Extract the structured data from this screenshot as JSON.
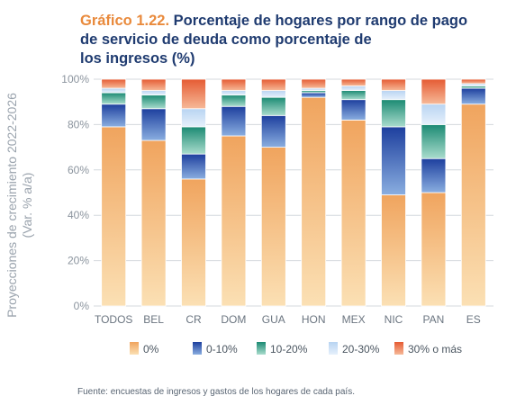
{
  "title_number": "Gráfico 1.22.",
  "title_lines": [
    "Porcentaje de hogares por rango de pago",
    "de servicio de deuda como porcentaje de",
    "los ingresos (%)"
  ],
  "ylabel_lines": [
    "Proyecciones de crecimiento 2022-2026",
    "(Var. % a/a)"
  ],
  "source": "Fuente: encuestas de ingresos y gastos de los hogares de cada país.",
  "chart_data": {
    "type": "bar",
    "stacked": true,
    "categories": [
      "TODOS",
      "BEL",
      "CR",
      "DOM",
      "GUA",
      "HON",
      "MEX",
      "NIC",
      "PAN",
      "ES"
    ],
    "yticks": [
      "0%",
      "20%",
      "40%",
      "60%",
      "80%",
      "100%"
    ],
    "ylim": [
      0,
      100
    ],
    "grid": true,
    "legend_position": "bottom",
    "series": [
      {
        "name": "0%",
        "values": [
          79,
          73,
          56,
          75,
          70,
          92,
          82,
          49,
          50,
          89
        ],
        "color_top": "#f0a45e",
        "color_bottom": "#fbe0b4",
        "legend_color": "#f2a65e"
      },
      {
        "name": "0-10%",
        "values": [
          10,
          14,
          11,
          13,
          14,
          2,
          9,
          30,
          15,
          7
        ],
        "color_top": "#1d3f9e",
        "color_bottom": "#8aaee0",
        "legend_color": "#2a4fa8"
      },
      {
        "name": "10-20%",
        "values": [
          5,
          6,
          12,
          5,
          8,
          1,
          4,
          12,
          15,
          1
        ],
        "color_top": "#1b8a73",
        "color_bottom": "#a9dccd",
        "legend_color": "#2e927a"
      },
      {
        "name": "20-30%",
        "values": [
          2,
          2,
          8,
          2,
          3,
          1,
          2,
          4,
          9,
          1
        ],
        "color_top": "#b8d4f2",
        "color_bottom": "#e6f0fb",
        "legend_color": "#bcd6f2"
      },
      {
        "name": "30% o más",
        "values": [
          4,
          5,
          13,
          5,
          5,
          4,
          3,
          5,
          11,
          2
        ],
        "color_top": "#e55b33",
        "color_bottom": "#f6b998",
        "legend_color": "#e66a3e"
      }
    ]
  }
}
